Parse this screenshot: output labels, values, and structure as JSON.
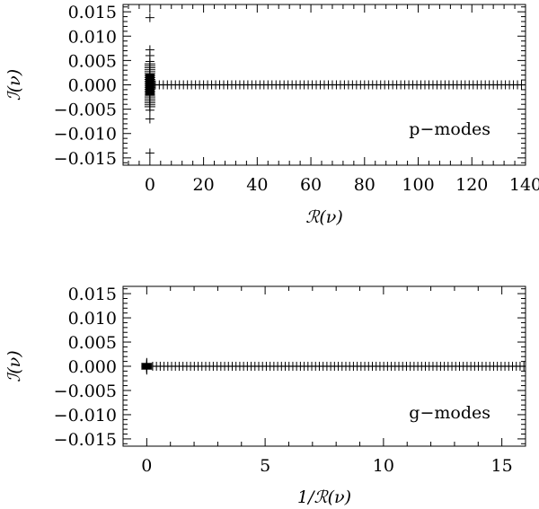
{
  "chart_data": [
    {
      "type": "scatter",
      "marker": "plus",
      "xlabel": "ℛ(ν)",
      "ylabel": "ℐ(ν)",
      "annotation": "p−modes",
      "xlim": [
        -10,
        140
      ],
      "ylim": [
        -0.0165,
        0.0165
      ],
      "x_ticks": [
        0,
        20,
        40,
        60,
        80,
        100,
        120,
        140
      ],
      "x_tick_labels": [
        "0",
        "20",
        "40",
        "60",
        "80",
        "100",
        "120",
        "140"
      ],
      "y_ticks": [
        0.015,
        0.01,
        0.005,
        0.0,
        -0.005,
        -0.01,
        -0.015
      ],
      "y_tick_labels": [
        "0.015",
        "0.010",
        "0.005",
        "0.000",
        "−0.005",
        "−0.010",
        "−0.015"
      ],
      "axis_points": {
        "y": 0.0,
        "x_from": 0.5,
        "x_to": 140,
        "x_step": 1.5
      },
      "cluster_points": {
        "x": 0,
        "y_from": -0.0045,
        "y_to": 0.0045,
        "y_step": 0.0004
      },
      "outlier_points": [
        {
          "x": 0,
          "y": 0.0138
        },
        {
          "x": 0,
          "y": 0.0072
        },
        {
          "x": 0,
          "y": 0.006
        },
        {
          "x": 0,
          "y": 0.0048
        },
        {
          "x": 0,
          "y": -0.0052
        },
        {
          "x": 0,
          "y": -0.007
        },
        {
          "x": 0,
          "y": -0.014
        }
      ]
    },
    {
      "type": "scatter",
      "marker": "plus",
      "xlabel": "1/ℛ(ν)",
      "ylabel": "ℐ(ν)",
      "annotation": "g−modes",
      "xlim": [
        -1,
        16
      ],
      "ylim": [
        -0.0165,
        0.0165
      ],
      "x_ticks": [
        0,
        5,
        10,
        15
      ],
      "x_tick_labels": [
        "0",
        "5",
        "10",
        "15"
      ],
      "y_ticks": [
        0.015,
        0.01,
        0.005,
        0.0,
        -0.005,
        -0.01,
        -0.015
      ],
      "y_tick_labels": [
        "0.015",
        "0.010",
        "0.005",
        "0.000",
        "−0.005",
        "−0.010",
        "−0.015"
      ],
      "axis_points": {
        "y": 0.0,
        "x_from": 0.25,
        "x_to": 16,
        "x_step": 0.16
      },
      "cluster_points": {
        "x": 0,
        "y_from": -0.0006,
        "y_to": 0.0006,
        "y_step": 0.0002
      },
      "outlier_points": []
    }
  ]
}
